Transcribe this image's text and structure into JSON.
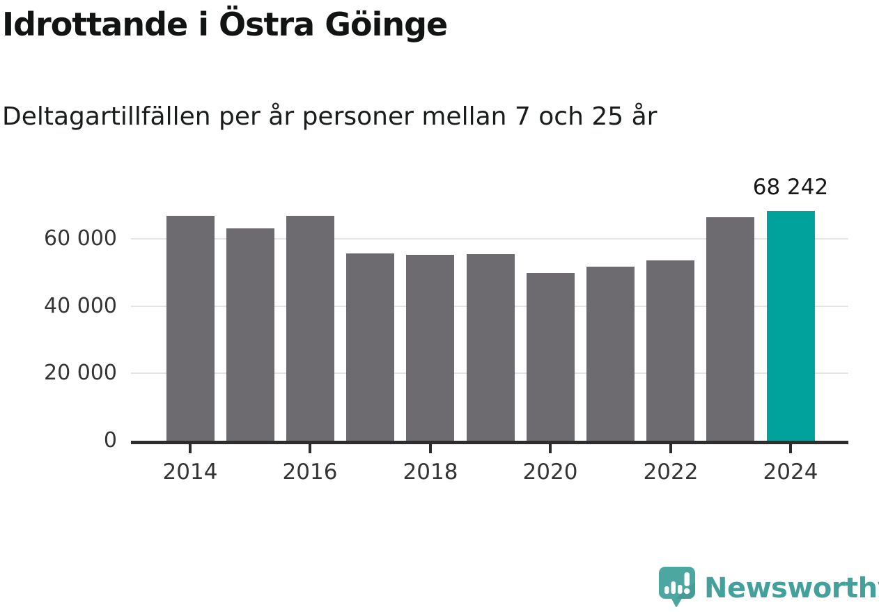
{
  "header": {
    "title": "Idrottande i Östra Göinge",
    "subtitle": "Deltagartillfällen per år personer mellan 7 och 25 år"
  },
  "chart_data": {
    "type": "bar",
    "title": "Idrottande i Östra Göinge",
    "subtitle": "Deltagartillfällen per år personer mellan 7 och 25 år",
    "categories": [
      2014,
      2015,
      2016,
      2017,
      2018,
      2019,
      2020,
      2021,
      2022,
      2023,
      2024
    ],
    "values": [
      66800,
      63100,
      66800,
      55700,
      55300,
      55500,
      49800,
      51600,
      53500,
      66400,
      68242
    ],
    "highlight_index": 10,
    "value_label": "68 242",
    "xlabel": "",
    "ylabel": "",
    "ylim": [
      0,
      70000
    ],
    "grid": "horizontal",
    "legend": "none",
    "xticks": [
      "2014",
      "2016",
      "2018",
      "2020",
      "2022",
      "2024"
    ],
    "yticks": [
      {
        "value": 0,
        "label": "0"
      },
      {
        "value": 20000,
        "label": "20 000"
      },
      {
        "value": 40000,
        "label": "40 000"
      },
      {
        "value": 60000,
        "label": "60 000"
      }
    ],
    "bar_color": "#6d6a70",
    "highlight_color": "#00a29b",
    "gridline_color": "#e4e4e4",
    "axis_color": "#2d2d2d"
  },
  "footer": {
    "brand": "Newsworthy",
    "brand_color": "#44a09b",
    "logo_icon": "newsworthy-speech-bubble-bar-chart-icon"
  }
}
